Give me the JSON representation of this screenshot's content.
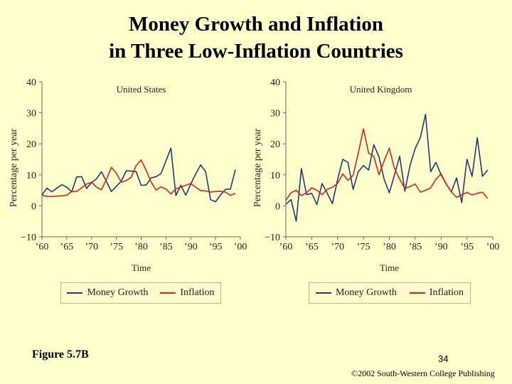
{
  "slide": {
    "title_line1": "Money Growth and Inflation",
    "title_line2": "in Three Low-Inflation Countries",
    "figure_label": "Figure 5.7B",
    "page_number": "34",
    "copyright": "©2002 South-Western College Publishing",
    "background": "#ffffcc"
  },
  "colors": {
    "money_growth": "#1f3a7a",
    "inflation": "#e02020"
  },
  "chart_data": [
    {
      "type": "line",
      "title": "United States",
      "xlabel": "Time",
      "ylabel": "Percentage per year",
      "xlim": [
        1960,
        2000
      ],
      "ylim": [
        -10,
        40
      ],
      "xticks": [
        1960,
        1965,
        1970,
        1975,
        1980,
        1985,
        1990,
        1995,
        2000
      ],
      "xtick_labels": [
        "’60",
        "’65",
        "’70",
        "’75",
        "’80",
        "’85",
        "’90",
        "’95",
        "’00"
      ],
      "yticks": [
        -10,
        0,
        10,
        20,
        30,
        40
      ],
      "ytick_labels": [
        "−10",
        "0",
        "10",
        "20",
        "30",
        "40"
      ],
      "grid": false,
      "legend": "bottom",
      "x": [
        1960,
        1961,
        1962,
        1963,
        1964,
        1965,
        1966,
        1967,
        1968,
        1969,
        1970,
        1971,
        1972,
        1973,
        1974,
        1975,
        1976,
        1977,
        1978,
        1979,
        1980,
        1981,
        1982,
        1983,
        1984,
        1985,
        1986,
        1987,
        1988,
        1989,
        1990,
        1991,
        1992,
        1993,
        1994,
        1995,
        1996,
        1997,
        1998,
        1999
      ],
      "series": [
        {
          "name": "Money Growth",
          "values": [
            3.5,
            5.7,
            4.5,
            5.7,
            6.8,
            6,
            4.5,
            9.3,
            9.4,
            5.6,
            7.5,
            8.7,
            11,
            7.8,
            4.6,
            6.3,
            8,
            11.3,
            11.2,
            11,
            6.6,
            6.7,
            9,
            9.4,
            10.4,
            14.5,
            18.6,
            3.3,
            6.6,
            3.4,
            7,
            10.3,
            13.2,
            11,
            2,
            1.3,
            3.5,
            5.3,
            5.4,
            11.7
          ]
        },
        {
          "name": "Inflation",
          "values": [
            3.4,
            3,
            3,
            3.1,
            3.2,
            3.4,
            4.6,
            4.6,
            5.8,
            7,
            7.6,
            6,
            5.2,
            8.5,
            12.4,
            10.5,
            7.6,
            8.1,
            9.2,
            13,
            14.8,
            11.5,
            7.7,
            5.1,
            6.1,
            5.4,
            3.8,
            5.5,
            6,
            6.6,
            7.2,
            6,
            4.9,
            4.8,
            4.4,
            4.6,
            4.7,
            4.4,
            3.4,
            4
          ]
        }
      ]
    },
    {
      "type": "line",
      "title": "United Kingdom",
      "xlabel": "Time",
      "ylabel": "Percentage per year",
      "xlim": [
        1960,
        2000
      ],
      "ylim": [
        -10,
        40
      ],
      "xticks": [
        1960,
        1965,
        1970,
        1975,
        1980,
        1985,
        1990,
        1995,
        2000
      ],
      "xtick_labels": [
        "’60",
        "’65",
        "’70",
        "’75",
        "’80",
        "’85",
        "’90",
        "’95",
        "’00"
      ],
      "yticks": [
        -10,
        0,
        10,
        20,
        30,
        40
      ],
      "ytick_labels": [
        "−10",
        "0",
        "10",
        "20",
        "30",
        "40"
      ],
      "grid": false,
      "legend": "bottom",
      "x": [
        1960,
        1961,
        1962,
        1963,
        1964,
        1965,
        1966,
        1967,
        1968,
        1969,
        1970,
        1971,
        1972,
        1973,
        1974,
        1975,
        1976,
        1977,
        1978,
        1979,
        1980,
        1981,
        1982,
        1983,
        1984,
        1985,
        1986,
        1987,
        1988,
        1989,
        1990,
        1991,
        1992,
        1993,
        1994,
        1995,
        1996,
        1997,
        1998,
        1999
      ],
      "series": [
        {
          "name": "Money Growth",
          "values": [
            0.5,
            2,
            -5,
            12,
            3.6,
            4,
            0.4,
            7.2,
            4,
            0.7,
            8.5,
            15,
            14,
            5.3,
            11,
            13,
            11.5,
            19.7,
            15.8,
            8.5,
            4.2,
            10,
            16,
            4.7,
            13,
            18.5,
            22,
            29.5,
            11,
            14,
            10,
            7,
            4.5,
            9,
            1,
            15,
            9.5,
            22,
            9.5,
            11.5
          ]
        },
        {
          "name": "Inflation",
          "values": [
            1.8,
            4.2,
            5,
            3.3,
            4.2,
            5.8,
            5,
            3.6,
            5.3,
            6,
            7.2,
            10.3,
            8.2,
            9.8,
            17,
            24.8,
            17,
            16,
            10,
            14.5,
            18.6,
            12,
            8.6,
            5.6,
            6.2,
            7,
            4.4,
            5,
            5.8,
            8.5,
            10.3,
            7,
            4.5,
            2.7,
            3.5,
            4.3,
            3.5,
            4,
            4.4,
            2.4
          ]
        }
      ]
    }
  ]
}
